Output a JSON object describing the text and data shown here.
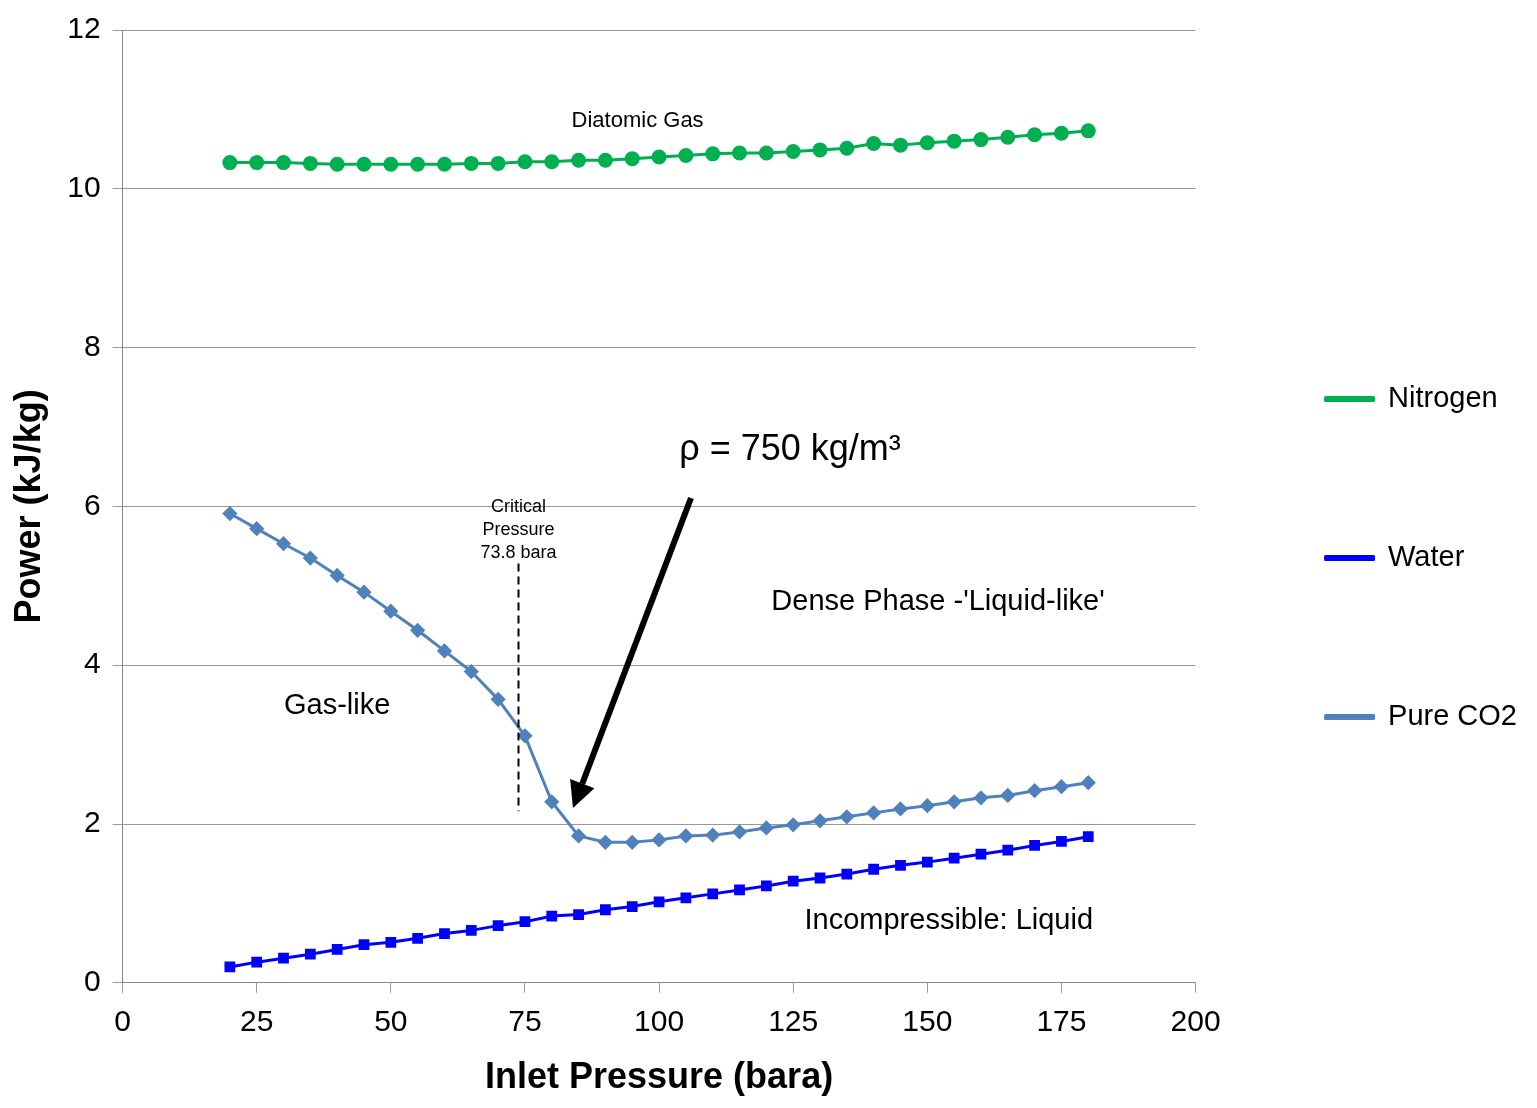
{
  "chart_data": {
    "type": "line",
    "xlabel": "Inlet Pressure (bara)",
    "ylabel": "Power (kJ/kg)",
    "x": [
      20,
      25,
      30,
      35,
      40,
      45,
      50,
      55,
      60,
      65,
      70,
      75,
      80,
      85,
      90,
      95,
      100,
      105,
      110,
      115,
      120,
      125,
      130,
      135,
      140,
      145,
      150,
      155,
      160,
      165,
      170,
      175,
      180
    ],
    "xlim": [
      0,
      200
    ],
    "xticks": [
      0,
      25,
      50,
      75,
      100,
      125,
      150,
      175,
      200
    ],
    "ylim": [
      0,
      12
    ],
    "yticks": [
      0,
      2,
      4,
      6,
      8,
      10,
      12
    ],
    "grid": "y",
    "legend": "right",
    "line_style": "solid",
    "series": [
      {
        "name": "Nitrogen",
        "color": "#00b050",
        "marker": "circle",
        "values": [
          10.33,
          10.33,
          10.33,
          10.32,
          10.31,
          10.31,
          10.31,
          10.31,
          10.31,
          10.32,
          10.32,
          10.34,
          10.34,
          10.36,
          10.36,
          10.38,
          10.4,
          10.42,
          10.44,
          10.45,
          10.45,
          10.47,
          10.49,
          10.51,
          10.57,
          10.55,
          10.58,
          10.6,
          10.62,
          10.65,
          10.68,
          10.7,
          10.73
        ]
      },
      {
        "name": "Water",
        "color": "#0000ff",
        "marker": "square",
        "values": [
          0.2,
          0.26,
          0.31,
          0.36,
          0.42,
          0.48,
          0.51,
          0.56,
          0.62,
          0.66,
          0.72,
          0.77,
          0.84,
          0.86,
          0.92,
          0.96,
          1.02,
          1.07,
          1.12,
          1.17,
          1.22,
          1.28,
          1.32,
          1.37,
          1.43,
          1.48,
          1.52,
          1.57,
          1.62,
          1.67,
          1.73,
          1.78,
          1.84
        ]
      },
      {
        "name": "Pure CO2",
        "color": "#4f81bd",
        "marker": "diamond",
        "values": [
          5.91,
          5.72,
          5.53,
          5.35,
          5.13,
          4.92,
          4.68,
          4.44,
          4.18,
          3.92,
          3.57,
          3.11,
          2.28,
          1.85,
          1.77,
          1.77,
          1.8,
          1.85,
          1.86,
          1.9,
          1.95,
          1.99,
          2.04,
          2.09,
          2.14,
          2.19,
          2.23,
          2.28,
          2.33,
          2.36,
          2.42,
          2.47,
          2.52
        ]
      }
    ],
    "ref_lines": [
      {
        "axis": "x",
        "value": 73.8,
        "label": "Critical Pressure 73.8 bara",
        "line_style": "dashed",
        "color": "#000000"
      }
    ],
    "annotations": [
      "Diatomic Gas",
      "Dense Phase -'Liquid-like'",
      "Gas-like",
      "Incompressible: Liquid",
      "ρ = 750 kg/m³"
    ]
  }
}
